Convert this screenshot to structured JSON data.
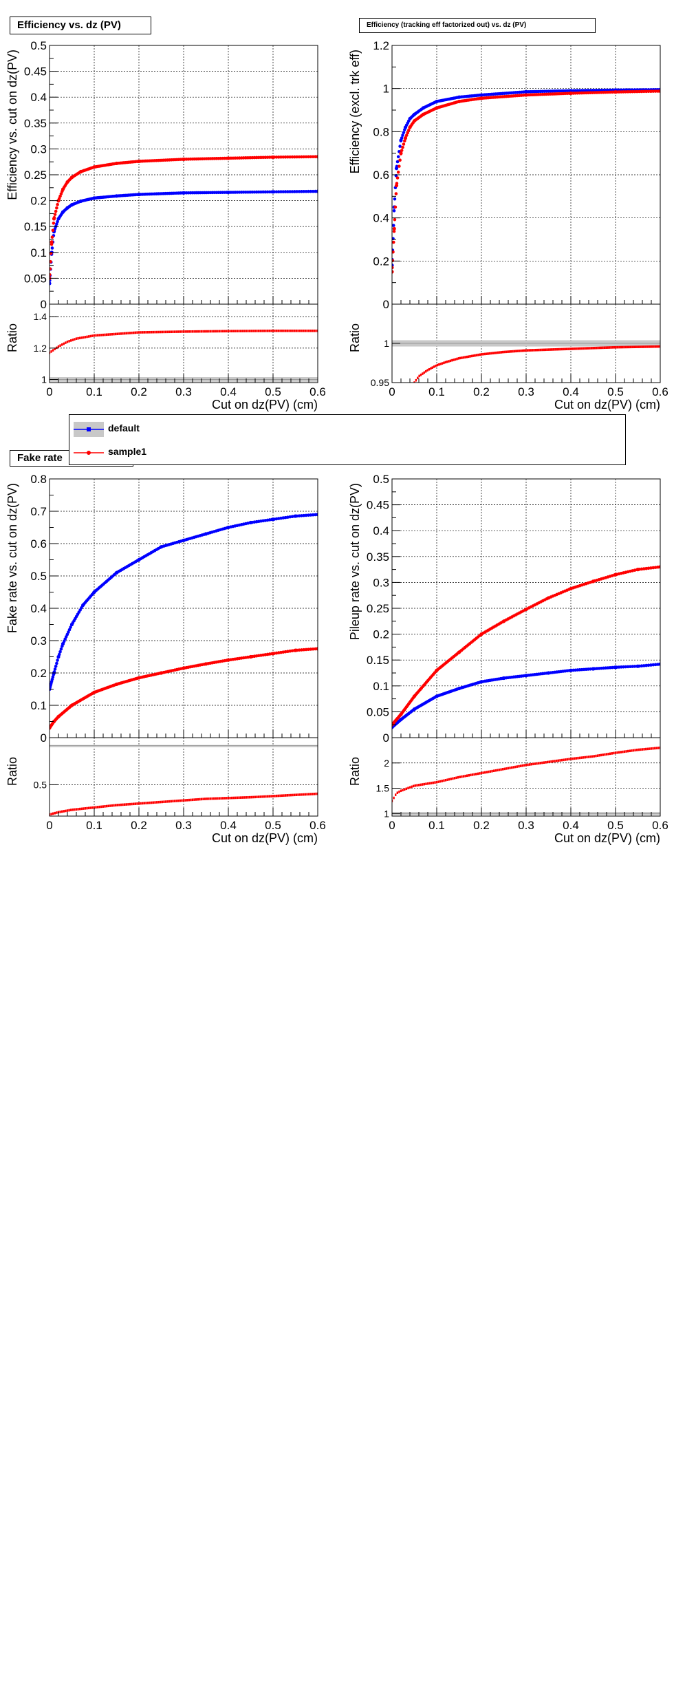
{
  "colors": {
    "default": "#0000ff",
    "sample1": "#ff0000",
    "band": "#c8c8c8"
  },
  "legend": {
    "entries": [
      {
        "label": "default",
        "color": "#0000ff",
        "band": true
      },
      {
        "label": "sample1",
        "color": "#ff0000",
        "band": false
      }
    ]
  },
  "chart_data": [
    {
      "type": "scatter",
      "title": "Efficiency vs. dz (PV)",
      "ylabel": "Efficiency vs. cut on dz(PV)",
      "xlabel": "Cut on dz(PV) (cm)",
      "xlim": [
        0,
        0.6
      ],
      "ylim": [
        0,
        0.5
      ],
      "xticks": [
        "0",
        "0.1",
        "0.2",
        "0.3",
        "0.4",
        "0.5",
        "0.6"
      ],
      "yticks": [
        "0",
        "0.05",
        "0.1",
        "0.15",
        "0.2",
        "0.25",
        "0.3",
        "0.35",
        "0.4",
        "0.45",
        "0.5"
      ],
      "grid": true,
      "series": [
        {
          "name": "default",
          "color": "#0000ff",
          "x": [
            0.0,
            0.005,
            0.01,
            0.02,
            0.03,
            0.04,
            0.05,
            0.07,
            0.1,
            0.15,
            0.2,
            0.3,
            0.4,
            0.5,
            0.6
          ],
          "y": [
            0.04,
            0.1,
            0.14,
            0.165,
            0.178,
            0.186,
            0.192,
            0.199,
            0.205,
            0.209,
            0.212,
            0.215,
            0.216,
            0.217,
            0.218
          ]
        },
        {
          "name": "sample1",
          "color": "#ff0000",
          "x": [
            0.0,
            0.005,
            0.01,
            0.02,
            0.03,
            0.04,
            0.05,
            0.07,
            0.1,
            0.15,
            0.2,
            0.3,
            0.4,
            0.5,
            0.6
          ],
          "y": [
            0.05,
            0.12,
            0.165,
            0.2,
            0.222,
            0.236,
            0.245,
            0.256,
            0.265,
            0.272,
            0.276,
            0.28,
            0.282,
            0.284,
            0.285
          ]
        }
      ],
      "ratio": {
        "ylabel": "Ratio",
        "ylim": [
          0.98,
          1.48
        ],
        "yticks": [
          {
            "v": 1,
            "label": "1"
          },
          {
            "v": 1.2,
            "label": "1.2"
          },
          {
            "v": 1.4,
            "label": "1.4"
          }
        ],
        "band": [
          0.985,
          1.015
        ],
        "x": [
          0.0,
          0.01,
          0.02,
          0.04,
          0.06,
          0.08,
          0.1,
          0.15,
          0.2,
          0.3,
          0.4,
          0.5,
          0.6
        ],
        "y": [
          1.17,
          1.19,
          1.21,
          1.24,
          1.26,
          1.27,
          1.28,
          1.29,
          1.3,
          1.305,
          1.308,
          1.31,
          1.31
        ]
      }
    },
    {
      "type": "scatter",
      "title": "Efficiency (tracking eff factorized out) vs. dz (PV)",
      "ylabel": "Efficiency (excl. trk eff)",
      "xlabel": "Cut on dz(PV) (cm)",
      "xlim": [
        0,
        0.6
      ],
      "ylim": [
        0,
        1.2
      ],
      "xticks": [
        "0",
        "0.1",
        "0.2",
        "0.3",
        "0.4",
        "0.5",
        "0.6"
      ],
      "yticks": [
        "0",
        "0.2",
        "0.4",
        "0.6",
        "0.8",
        "1",
        "1.2"
      ],
      "grid": true,
      "series": [
        {
          "name": "default",
          "color": "#0000ff",
          "x": [
            0.0,
            0.005,
            0.01,
            0.02,
            0.03,
            0.04,
            0.05,
            0.07,
            0.1,
            0.15,
            0.2,
            0.3,
            0.4,
            0.5,
            0.6
          ],
          "y": [
            0.18,
            0.45,
            0.63,
            0.76,
            0.82,
            0.86,
            0.88,
            0.91,
            0.94,
            0.96,
            0.97,
            0.985,
            0.99,
            0.993,
            0.995
          ]
        },
        {
          "name": "sample1",
          "color": "#ff0000",
          "x": [
            0.0,
            0.005,
            0.01,
            0.02,
            0.03,
            0.04,
            0.05,
            0.07,
            0.1,
            0.15,
            0.2,
            0.3,
            0.4,
            0.5,
            0.6
          ],
          "y": [
            0.15,
            0.35,
            0.55,
            0.7,
            0.77,
            0.82,
            0.85,
            0.88,
            0.91,
            0.94,
            0.955,
            0.97,
            0.978,
            0.984,
            0.988
          ]
        }
      ],
      "ratio": {
        "ylabel": "Ratio",
        "ylim": [
          0.95,
          1.05
        ],
        "yticks": [
          {
            "v": 0.95,
            "label": "0.95"
          },
          {
            "v": 1,
            "label": "1"
          }
        ],
        "band": [
          0.996,
          1.004
        ],
        "x": [
          0.05,
          0.06,
          0.08,
          0.1,
          0.12,
          0.15,
          0.2,
          0.25,
          0.3,
          0.4,
          0.5,
          0.6
        ],
        "y": [
          0.95,
          0.958,
          0.966,
          0.972,
          0.976,
          0.981,
          0.986,
          0.989,
          0.991,
          0.993,
          0.995,
          0.996
        ]
      }
    },
    {
      "type": "scatter",
      "title": "Fake rate",
      "ylabel": "Fake rate vs. cut on dz(PV)",
      "xlabel": "Cut on dz(PV) (cm)",
      "xlim": [
        0,
        0.6
      ],
      "ylim": [
        0,
        0.8
      ],
      "xticks": [
        "0",
        "0.1",
        "0.2",
        "0.3",
        "0.4",
        "0.5",
        "0.6"
      ],
      "yticks": [
        "0",
        "0.1",
        "0.2",
        "0.3",
        "0.4",
        "0.5",
        "0.6",
        "0.7",
        "0.8"
      ],
      "grid": true,
      "series": [
        {
          "name": "default",
          "color": "#0000ff",
          "x": [
            0.0,
            0.01,
            0.02,
            0.03,
            0.05,
            0.075,
            0.1,
            0.15,
            0.2,
            0.25,
            0.3,
            0.35,
            0.4,
            0.45,
            0.5,
            0.55,
            0.6
          ],
          "y": [
            0.15,
            0.2,
            0.25,
            0.29,
            0.35,
            0.41,
            0.45,
            0.51,
            0.55,
            0.59,
            0.61,
            0.63,
            0.65,
            0.665,
            0.675,
            0.685,
            0.69
          ]
        },
        {
          "name": "sample1",
          "color": "#ff0000",
          "x": [
            0.0,
            0.01,
            0.02,
            0.05,
            0.1,
            0.15,
            0.2,
            0.25,
            0.3,
            0.35,
            0.4,
            0.45,
            0.5,
            0.55,
            0.6
          ],
          "y": [
            0.03,
            0.05,
            0.065,
            0.1,
            0.14,
            0.165,
            0.185,
            0.2,
            0.215,
            0.228,
            0.24,
            0.25,
            0.26,
            0.27,
            0.275
          ]
        }
      ],
      "ratio": {
        "ylabel": "Ratio",
        "ylim": [
          0.1,
          1.1
        ],
        "yticks": [
          {
            "v": 0.5,
            "label": "0.5"
          }
        ],
        "band": [
          0.995,
          1.005
        ],
        "x": [
          0.0,
          0.02,
          0.05,
          0.1,
          0.15,
          0.2,
          0.25,
          0.3,
          0.35,
          0.4,
          0.45,
          0.5,
          0.55,
          0.6
        ],
        "y": [
          0.12,
          0.15,
          0.18,
          0.21,
          0.24,
          0.26,
          0.28,
          0.3,
          0.32,
          0.33,
          0.34,
          0.355,
          0.37,
          0.385
        ]
      }
    },
    {
      "type": "scatter",
      "title": "",
      "ylabel": "Pileup rate vs. cut on dz(PV)",
      "xlabel": "Cut on dz(PV) (cm)",
      "xlim": [
        0,
        0.6
      ],
      "ylim": [
        0,
        0.5
      ],
      "xticks": [
        "0",
        "0.1",
        "0.2",
        "0.3",
        "0.4",
        "0.5",
        "0.6"
      ],
      "yticks": [
        "0",
        "0.05",
        "0.1",
        "0.15",
        "0.2",
        "0.25",
        "0.3",
        "0.35",
        "0.4",
        "0.45",
        "0.5"
      ],
      "grid": true,
      "series": [
        {
          "name": "default",
          "color": "#0000ff",
          "x": [
            0.0,
            0.02,
            0.05,
            0.1,
            0.15,
            0.2,
            0.25,
            0.3,
            0.35,
            0.4,
            0.45,
            0.5,
            0.55,
            0.6
          ],
          "y": [
            0.02,
            0.035,
            0.055,
            0.08,
            0.095,
            0.108,
            0.115,
            0.12,
            0.125,
            0.13,
            0.133,
            0.136,
            0.138,
            0.142
          ]
        },
        {
          "name": "sample1",
          "color": "#ff0000",
          "x": [
            0.0,
            0.02,
            0.05,
            0.1,
            0.15,
            0.2,
            0.25,
            0.3,
            0.35,
            0.4,
            0.45,
            0.5,
            0.55,
            0.6
          ],
          "y": [
            0.025,
            0.045,
            0.08,
            0.13,
            0.165,
            0.2,
            0.225,
            0.248,
            0.27,
            0.288,
            0.302,
            0.315,
            0.325,
            0.33
          ]
        }
      ],
      "ratio": {
        "ylabel": "Ratio",
        "ylim": [
          0.95,
          2.5
        ],
        "yticks": [
          {
            "v": 1,
            "label": "1"
          },
          {
            "v": 1.5,
            "label": "1.5"
          },
          {
            "v": 2,
            "label": "2"
          }
        ],
        "band": [
          0.97,
          1.03
        ],
        "x": [
          0.0,
          0.01,
          0.02,
          0.05,
          0.1,
          0.15,
          0.2,
          0.25,
          0.3,
          0.35,
          0.4,
          0.45,
          0.5,
          0.55,
          0.6
        ],
        "y": [
          1.25,
          1.4,
          1.45,
          1.55,
          1.62,
          1.72,
          1.8,
          1.88,
          1.96,
          2.02,
          2.08,
          2.13,
          2.2,
          2.26,
          2.3
        ]
      }
    }
  ]
}
